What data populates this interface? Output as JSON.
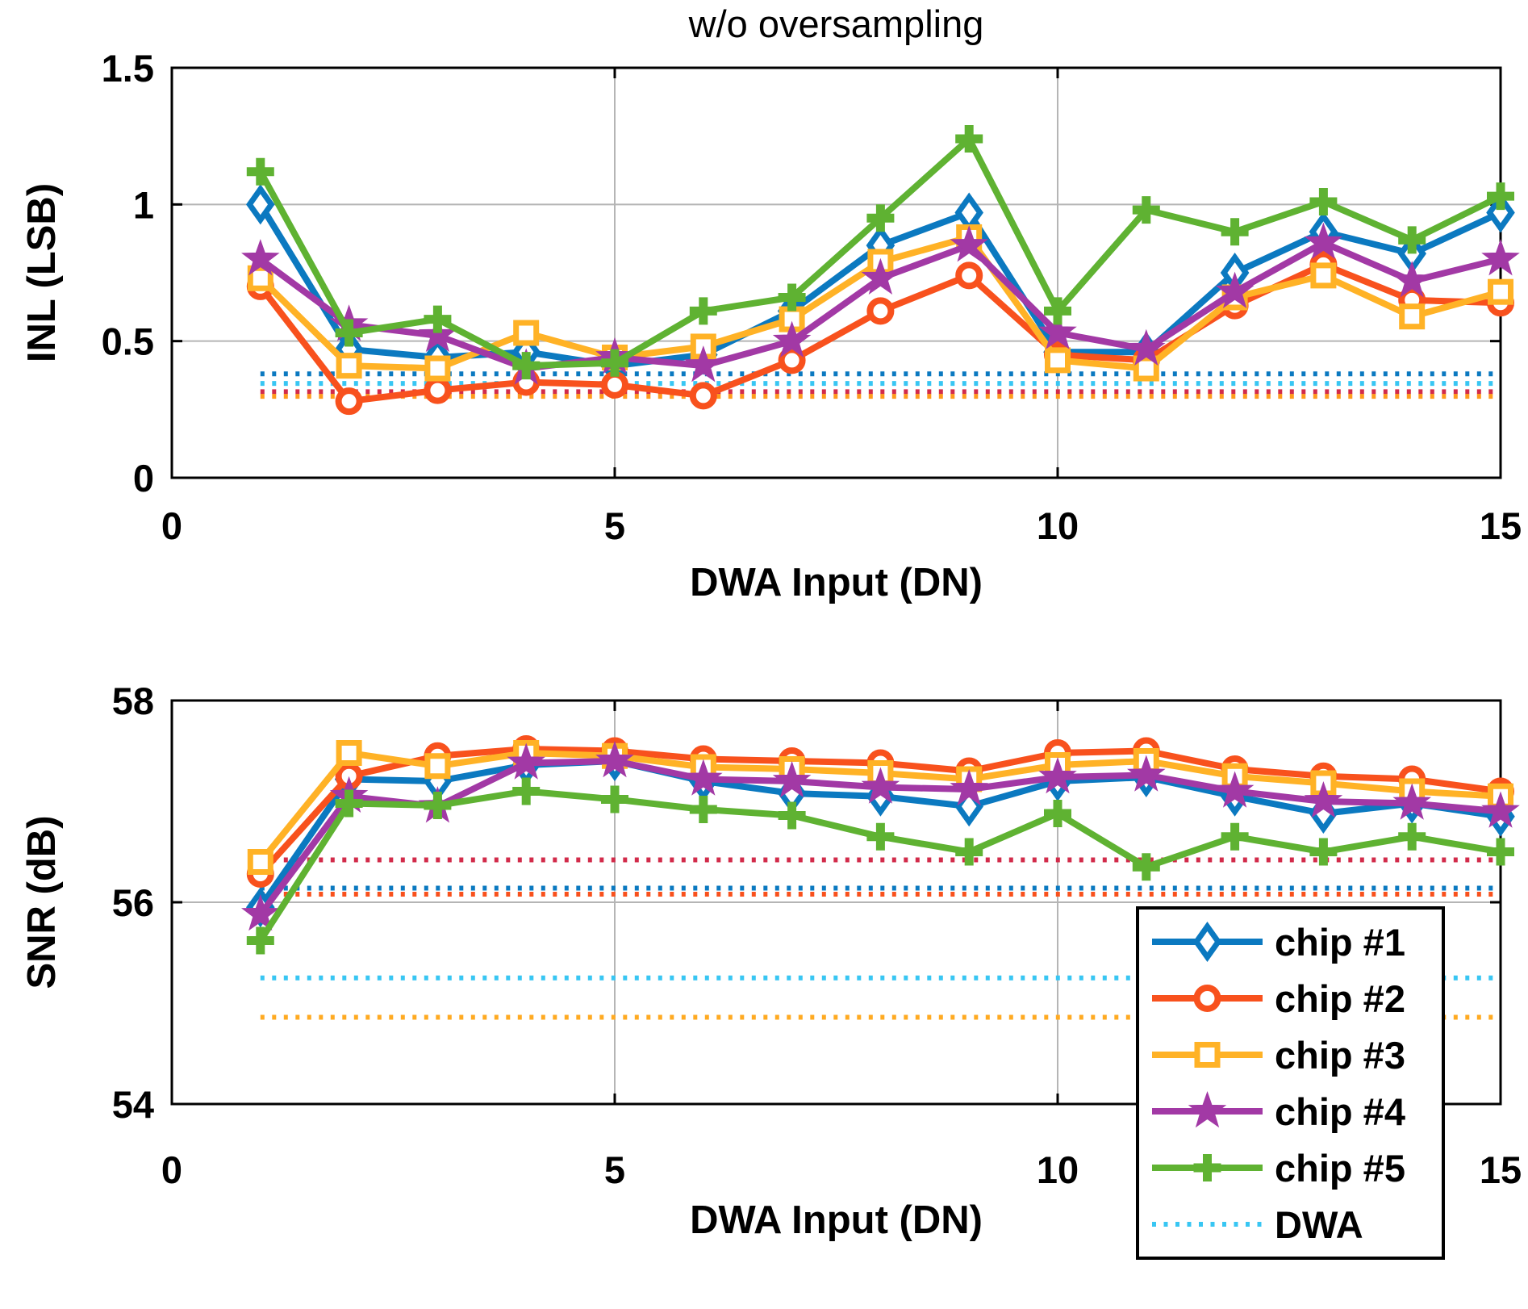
{
  "figure": {
    "title": "w/o oversampling"
  },
  "legend": {
    "entries": [
      {
        "label": "chip #1",
        "marker": "diamond",
        "color": "#0b79c0"
      },
      {
        "label": "chip #2",
        "marker": "circle",
        "color": "#f8511d"
      },
      {
        "label": "chip #3",
        "marker": "square",
        "color": "#ffb226"
      },
      {
        "label": "chip #4",
        "marker": "star",
        "color": "#a239a5"
      },
      {
        "label": "chip #5",
        "marker": "plus",
        "color": "#5fb232"
      },
      {
        "label": "DWA",
        "marker": "dotted",
        "color": "#38c6f3"
      }
    ]
  },
  "chart_data": [
    {
      "id": "inl",
      "type": "line",
      "title": "w/o oversampling",
      "xlabel": "DWA Input (DN)",
      "ylabel": "INL (LSB)",
      "xlim": [
        0,
        15
      ],
      "ylim": [
        0,
        1.5
      ],
      "xticks": [
        0,
        5,
        10,
        15
      ],
      "xtick_labels": [
        "0",
        "5",
        "10",
        "15"
      ],
      "yticks": [
        0,
        0.5,
        1,
        1.5
      ],
      "ytick_labels": [
        "0",
        "0.5",
        "1",
        "1.5"
      ],
      "grid_x": [
        5,
        10
      ],
      "grid_y": [
        0.5,
        1
      ],
      "x": [
        1,
        2,
        3,
        4,
        5,
        6,
        7,
        8,
        9,
        10,
        11,
        12,
        13,
        14,
        15
      ],
      "series": [
        {
          "name": "chip #1",
          "marker": "diamond",
          "color": "#0b79c0",
          "values": [
            1.0,
            0.47,
            0.44,
            0.46,
            0.41,
            0.45,
            0.61,
            0.85,
            0.97,
            0.46,
            0.46,
            0.75,
            0.9,
            0.82,
            0.97
          ]
        },
        {
          "name": "chip #2",
          "marker": "circle",
          "color": "#f8511d",
          "values": [
            0.7,
            0.28,
            0.32,
            0.35,
            0.34,
            0.3,
            0.43,
            0.61,
            0.74,
            0.45,
            0.43,
            0.63,
            0.78,
            0.65,
            0.64
          ]
        },
        {
          "name": "chip #3",
          "marker": "square",
          "color": "#ffb226",
          "values": [
            0.73,
            0.41,
            0.4,
            0.53,
            0.44,
            0.48,
            0.58,
            0.79,
            0.88,
            0.43,
            0.4,
            0.66,
            0.74,
            0.59,
            0.68
          ]
        },
        {
          "name": "chip #4",
          "marker": "star",
          "color": "#a239a5",
          "values": [
            0.8,
            0.56,
            0.52,
            0.4,
            0.44,
            0.41,
            0.5,
            0.73,
            0.85,
            0.53,
            0.47,
            0.68,
            0.86,
            0.72,
            0.8
          ]
        },
        {
          "name": "chip #5",
          "marker": "plus",
          "color": "#5fb232",
          "values": [
            1.12,
            0.53,
            0.58,
            0.41,
            0.42,
            0.61,
            0.66,
            0.95,
            1.24,
            0.61,
            0.98,
            0.9,
            1.01,
            0.87,
            1.03
          ]
        }
      ],
      "ref_lines": [
        {
          "name": "DWA",
          "value": 0.38,
          "color": "#0b79c0"
        },
        {
          "name": "DWA",
          "value": 0.345,
          "color": "#38c6f3"
        },
        {
          "name": "DWA",
          "value": 0.315,
          "color": "#d22b4a"
        },
        {
          "name": "DWA",
          "value": 0.298,
          "color": "#ff9b1c"
        }
      ],
      "ref_x_range": [
        1,
        15
      ]
    },
    {
      "id": "snr",
      "type": "line",
      "title": "",
      "xlabel": "DWA Input (DN)",
      "ylabel": "SNR (dB)",
      "xlim": [
        0,
        15
      ],
      "ylim": [
        54,
        58
      ],
      "xticks": [
        0,
        5,
        10,
        15
      ],
      "xtick_labels": [
        "0",
        "5",
        "10",
        "15"
      ],
      "yticks": [
        54,
        56,
        58
      ],
      "ytick_labels": [
        "54",
        "56",
        "58"
      ],
      "grid_x": [
        5,
        10
      ],
      "grid_y": [
        56
      ],
      "x": [
        1,
        2,
        3,
        4,
        5,
        6,
        7,
        8,
        9,
        10,
        11,
        12,
        13,
        14,
        15
      ],
      "series": [
        {
          "name": "chip #1",
          "marker": "diamond",
          "color": "#0b79c0",
          "values": [
            55.95,
            57.22,
            57.2,
            57.36,
            57.4,
            57.2,
            57.08,
            57.05,
            56.95,
            57.2,
            57.24,
            57.05,
            56.88,
            56.98,
            56.85
          ]
        },
        {
          "name": "chip #2",
          "marker": "circle",
          "color": "#f8511d",
          "values": [
            56.28,
            57.25,
            57.45,
            57.52,
            57.5,
            57.42,
            57.4,
            57.38,
            57.3,
            57.48,
            57.5,
            57.32,
            57.25,
            57.22,
            57.1
          ]
        },
        {
          "name": "chip #3",
          "marker": "square",
          "color": "#ffb226",
          "values": [
            56.4,
            57.48,
            57.35,
            57.48,
            57.45,
            57.34,
            57.32,
            57.28,
            57.22,
            57.36,
            57.4,
            57.25,
            57.18,
            57.1,
            57.05
          ]
        },
        {
          "name": "chip #4",
          "marker": "star",
          "color": "#a239a5",
          "values": [
            55.88,
            57.05,
            56.95,
            57.38,
            57.4,
            57.22,
            57.2,
            57.14,
            57.12,
            57.24,
            57.26,
            57.1,
            57.0,
            56.98,
            56.9
          ]
        },
        {
          "name": "chip #5",
          "marker": "plus",
          "color": "#5fb232",
          "values": [
            55.62,
            56.98,
            56.96,
            57.1,
            57.02,
            56.92,
            56.86,
            56.65,
            56.5,
            56.88,
            56.35,
            56.65,
            56.5,
            56.65,
            56.5
          ]
        }
      ],
      "ref_lines": [
        {
          "name": "DWA",
          "value": 56.42,
          "color": "#d22b4a"
        },
        {
          "name": "DWA",
          "value": 56.14,
          "color": "#0b79c0"
        },
        {
          "name": "DWA",
          "value": 56.08,
          "color": "#f8511d"
        },
        {
          "name": "DWA",
          "value": 55.25,
          "color": "#38c6f3"
        },
        {
          "name": "DWA",
          "value": 54.86,
          "color": "#ffaa22"
        }
      ],
      "ref_x_range": [
        1,
        15
      ]
    }
  ]
}
